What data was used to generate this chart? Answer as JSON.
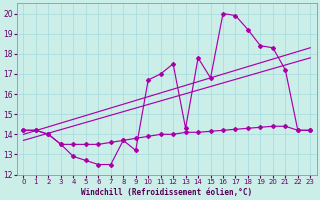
{
  "xlabel": "Windchill (Refroidissement éolien,°C)",
  "bg_color": "#cceee8",
  "grid_color": "#aadddd",
  "line_color": "#aa00aa",
  "xlim": [
    -0.5,
    23.5
  ],
  "ylim": [
    12,
    20.5
  ],
  "yticks": [
    12,
    13,
    14,
    15,
    16,
    17,
    18,
    19,
    20
  ],
  "xticks": [
    0,
    1,
    2,
    3,
    4,
    5,
    6,
    7,
    8,
    9,
    10,
    11,
    12,
    13,
    14,
    15,
    16,
    17,
    18,
    19,
    20,
    21,
    22,
    23
  ],
  "main_x": [
    0,
    1,
    2,
    3,
    4,
    5,
    6,
    7,
    8,
    9,
    10,
    11,
    12,
    13,
    14,
    15,
    16,
    17,
    18,
    19,
    20,
    21,
    22,
    23
  ],
  "main_y": [
    14.2,
    14.2,
    14.0,
    13.5,
    12.9,
    12.7,
    12.5,
    12.5,
    13.7,
    13.2,
    16.7,
    17.0,
    17.5,
    14.3,
    17.8,
    16.8,
    20.0,
    19.9,
    19.2,
    18.4,
    18.3,
    17.2,
    14.2,
    14.2
  ],
  "lower_x": [
    0,
    1,
    2,
    3,
    4,
    5,
    6,
    7,
    8,
    9,
    10,
    11,
    12,
    13,
    14,
    15,
    16,
    17,
    18,
    19,
    20,
    21,
    22,
    23
  ],
  "lower_y": [
    14.2,
    14.2,
    14.0,
    13.5,
    13.5,
    13.5,
    13.5,
    13.6,
    13.7,
    13.8,
    13.9,
    14.0,
    14.0,
    14.1,
    14.1,
    14.15,
    14.2,
    14.25,
    14.3,
    14.35,
    14.4,
    14.4,
    14.2,
    14.2
  ],
  "trend1_x": [
    0,
    23
  ],
  "trend1_y": [
    14.0,
    18.3
  ],
  "trend2_x": [
    0,
    23
  ],
  "trend2_y": [
    13.7,
    17.8
  ]
}
